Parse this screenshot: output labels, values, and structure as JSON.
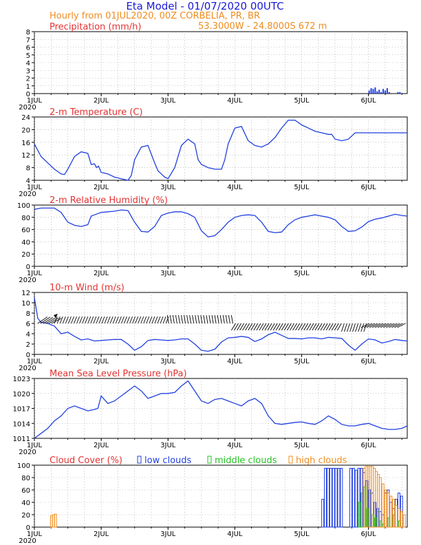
{
  "header": {
    "title": "Eta Model - 01/07/2020 00UTC",
    "line1": "Hourly from 01JUL2020, 00Z  CORBELIA, PR, BR",
    "line2": "53.3000W - 24.8000S    672  m"
  },
  "colors": {
    "title": "#1a1ad6",
    "subtitle": "#f08c1e",
    "panel_title": "#e43232",
    "series": "#1f3fe0",
    "low": "#1f3fe0",
    "middle": "#22c322",
    "high": "#f08c1e",
    "wind": "#000000"
  },
  "chart_data": [
    {
      "id": "precip",
      "type": "bar",
      "title": "Precipitation (mm/h)",
      "ylim": [
        0,
        8
      ],
      "yticks": [
        "0",
        "1",
        "2",
        "3",
        "4",
        "5",
        "6",
        "7",
        "8"
      ],
      "xlim": [
        0,
        5.58
      ],
      "xticks": [
        "1JUL",
        "2JUL",
        "3JUL",
        "4JUL",
        "5JUL",
        "6JUL"
      ],
      "xsub": "2020",
      "x": [
        5.0,
        5.03,
        5.06,
        5.09,
        5.12,
        5.15,
        5.18,
        5.21,
        5.24,
        5.27,
        5.3,
        5.43,
        5.46
      ],
      "values": [
        0.4,
        0.7,
        0.6,
        0.8,
        0.3,
        0.5,
        0.2,
        0.6,
        0.4,
        0.7,
        0.2,
        0.2,
        0.2
      ]
    },
    {
      "id": "temp",
      "type": "line",
      "title": "2-m Temperature (C)",
      "ylim": [
        4,
        24
      ],
      "yticks": [
        "4",
        "8",
        "12",
        "16",
        "20",
        "24"
      ],
      "xlim": [
        0,
        5.58
      ],
      "xticks": [
        "1JUL",
        "2JUL",
        "3JUL",
        "4JUL",
        "5JUL",
        "6JUL"
      ],
      "xsub": "2020",
      "x": [
        0,
        0.1,
        0.2,
        0.3,
        0.4,
        0.45,
        0.5,
        0.6,
        0.7,
        0.8,
        0.85,
        0.9,
        0.93,
        0.96,
        1.0,
        1.1,
        1.2,
        1.3,
        1.4,
        1.45,
        1.5,
        1.6,
        1.7,
        1.8,
        1.85,
        1.9,
        1.95,
        2.0,
        2.1,
        2.2,
        2.3,
        2.4,
        2.45,
        2.5,
        2.6,
        2.7,
        2.8,
        2.85,
        2.9,
        3.0,
        3.1,
        3.2,
        3.3,
        3.4,
        3.45,
        3.5,
        3.6,
        3.7,
        3.8,
        3.9,
        4.0,
        4.1,
        4.2,
        4.3,
        4.4,
        4.45,
        4.5,
        4.6,
        4.7,
        4.8,
        4.9,
        4.95,
        5.0,
        5.1,
        5.2,
        5.3,
        5.4,
        5.5,
        5.58
      ],
      "values": [
        15.5,
        11.5,
        9.5,
        7.5,
        6.0,
        5.8,
        7.5,
        11.5,
        13.0,
        12.5,
        9.0,
        9.2,
        8.0,
        8.5,
        6.5,
        6.0,
        5.0,
        4.5,
        4.0,
        5.5,
        10.5,
        14.5,
        15.0,
        9.5,
        7.0,
        6.0,
        5.0,
        4.5,
        8.0,
        15.0,
        17.0,
        15.5,
        10.5,
        9.0,
        8.0,
        7.5,
        7.5,
        10.5,
        15.5,
        20.5,
        21.0,
        16.5,
        15.0,
        14.5,
        15.0,
        15.5,
        17.5,
        20.5,
        23.0,
        23.0,
        21.5,
        20.5,
        19.5,
        19.0,
        18.5,
        18.5,
        17.0,
        16.5,
        17.0,
        19.0,
        19.0,
        19.0,
        19.0,
        19.0,
        19.0,
        19.0,
        19.0,
        19.0,
        19.0
      ]
    },
    {
      "id": "rh",
      "type": "line",
      "title": "2-m Relative Humidity (%)",
      "ylim": [
        0,
        100
      ],
      "yticks": [
        "0",
        "20",
        "40",
        "60",
        "80",
        "100"
      ],
      "xlim": [
        0,
        5.58
      ],
      "xticks": [
        "1JUL",
        "2JUL",
        "3JUL",
        "4JUL",
        "5JUL",
        "6JUL"
      ],
      "xsub": "2020",
      "x": [
        0,
        0.1,
        0.2,
        0.3,
        0.4,
        0.5,
        0.6,
        0.7,
        0.8,
        0.85,
        0.9,
        1.0,
        1.1,
        1.2,
        1.3,
        1.4,
        1.5,
        1.6,
        1.7,
        1.8,
        1.9,
        2.0,
        2.1,
        2.2,
        2.3,
        2.4,
        2.5,
        2.6,
        2.7,
        2.8,
        2.9,
        3.0,
        3.1,
        3.2,
        3.3,
        3.4,
        3.5,
        3.6,
        3.7,
        3.8,
        3.9,
        4.0,
        4.1,
        4.2,
        4.3,
        4.4,
        4.5,
        4.6,
        4.7,
        4.8,
        4.9,
        5.0,
        5.1,
        5.2,
        5.3,
        5.4,
        5.5,
        5.58
      ],
      "values": [
        93,
        95,
        95,
        95,
        88,
        72,
        67,
        65,
        68,
        82,
        84,
        88,
        89,
        90,
        92,
        91,
        72,
        57,
        56,
        65,
        83,
        87,
        89,
        89,
        86,
        80,
        58,
        48,
        50,
        60,
        72,
        80,
        83,
        84,
        83,
        72,
        57,
        55,
        56,
        68,
        76,
        80,
        82,
        84,
        82,
        80,
        76,
        65,
        57,
        58,
        64,
        73,
        77,
        79,
        82,
        85,
        83,
        82
      ]
    },
    {
      "id": "wind",
      "type": "line",
      "title": "10-m Wind (m/s)",
      "ylim": [
        0,
        12
      ],
      "yticks": [
        "0",
        "2",
        "4",
        "6",
        "8",
        "10",
        "12"
      ],
      "xlim": [
        0,
        5.58
      ],
      "xticks": [
        "1JUL",
        "2JUL",
        "3JUL",
        "4JUL",
        "5JUL",
        "6JUL"
      ],
      "xsub": "2020",
      "x": [
        0,
        0.05,
        0.1,
        0.2,
        0.3,
        0.4,
        0.5,
        0.6,
        0.7,
        0.8,
        0.9,
        1.0,
        1.1,
        1.2,
        1.3,
        1.4,
        1.5,
        1.6,
        1.7,
        1.8,
        1.9,
        2.0,
        2.1,
        2.2,
        2.3,
        2.4,
        2.5,
        2.6,
        2.7,
        2.8,
        2.9,
        3.0,
        3.1,
        3.2,
        3.3,
        3.4,
        3.5,
        3.6,
        3.7,
        3.8,
        3.9,
        4.0,
        4.1,
        4.2,
        4.3,
        4.4,
        4.5,
        4.6,
        4.7,
        4.8,
        4.9,
        5.0,
        5.1,
        5.2,
        5.3,
        5.4,
        5.5,
        5.58
      ],
      "values": [
        11,
        7,
        6.2,
        6.0,
        5.5,
        4.0,
        4.3,
        3.5,
        2.8,
        3.0,
        2.6,
        2.7,
        2.8,
        2.9,
        2.9,
        2.0,
        0.8,
        1.5,
        2.7,
        2.9,
        2.8,
        2.7,
        2.8,
        3.0,
        3.0,
        2.0,
        0.8,
        0.6,
        1.0,
        2.4,
        3.2,
        3.3,
        3.5,
        3.3,
        2.5,
        3.0,
        3.8,
        4.3,
        3.7,
        3.1,
        3.1,
        3.0,
        3.2,
        3.2,
        3.0,
        3.3,
        3.2,
        3.1,
        1.8,
        0.8,
        2.0,
        3.0,
        2.8,
        2.2,
        2.5,
        2.9,
        2.7,
        2.6
      ],
      "arrow_base": 6,
      "arrows_note": "wind direction barbs along baseline"
    },
    {
      "id": "mslp",
      "type": "line",
      "title": "Mean Sea Level Pressure (hPa)",
      "ylim": [
        1011,
        1023
      ],
      "yticks": [
        "1011",
        "1014",
        "1017",
        "1020",
        "1023"
      ],
      "xlim": [
        0,
        5.58
      ],
      "xticks": [
        "1JUL",
        "2JUL",
        "3JUL",
        "4JUL",
        "5JUL",
        "6JUL"
      ],
      "xsub": "2020",
      "x": [
        0,
        0.1,
        0.2,
        0.3,
        0.4,
        0.5,
        0.6,
        0.7,
        0.8,
        0.9,
        0.95,
        1.0,
        1.1,
        1.2,
        1.3,
        1.4,
        1.5,
        1.6,
        1.7,
        1.8,
        1.9,
        2.0,
        2.1,
        2.2,
        2.3,
        2.4,
        2.5,
        2.6,
        2.7,
        2.8,
        2.9,
        3.0,
        3.1,
        3.2,
        3.3,
        3.4,
        3.5,
        3.6,
        3.7,
        3.8,
        3.9,
        4.0,
        4.1,
        4.2,
        4.3,
        4.4,
        4.5,
        4.6,
        4.7,
        4.8,
        4.9,
        5.0,
        5.1,
        5.2,
        5.3,
        5.4,
        5.5,
        5.58
      ],
      "values": [
        1011,
        1012,
        1013,
        1014.5,
        1015.5,
        1017,
        1017.5,
        1017,
        1016.5,
        1016.8,
        1017,
        1019.5,
        1018,
        1018.5,
        1019.5,
        1020.5,
        1021.5,
        1020.5,
        1019,
        1019.5,
        1020,
        1020,
        1020.2,
        1021.5,
        1022.5,
        1020.5,
        1018.5,
        1018,
        1018.8,
        1019,
        1018.5,
        1018,
        1017.5,
        1018.5,
        1019,
        1018,
        1015.5,
        1014,
        1013.8,
        1014,
        1014.2,
        1014.3,
        1014,
        1013.8,
        1014.5,
        1015.5,
        1014.8,
        1013.8,
        1013.5,
        1013.5,
        1013.8,
        1014,
        1013.5,
        1013,
        1012.8,
        1012.8,
        1013,
        1013.5
      ]
    },
    {
      "id": "cloud",
      "type": "bar",
      "title": "Cloud Cover (%)",
      "legend": [
        "low clouds",
        "middle clouds",
        "high clouds"
      ],
      "ylim": [
        0,
        100
      ],
      "yticks": [
        "0",
        "20",
        "40",
        "60",
        "80",
        "100"
      ],
      "xlim": [
        0,
        5.58
      ],
      "xticks": [
        "1JUL",
        "2JUL",
        "3JUL",
        "4JUL",
        "5JUL",
        "6JUL"
      ],
      "xsub": "2020",
      "low": {
        "x": [
          4.3,
          4.34,
          4.38,
          4.42,
          4.46,
          4.5,
          4.54,
          4.58,
          4.72,
          4.76,
          4.8,
          4.84,
          4.88,
          4.92,
          4.96,
          5.0,
          5.04,
          5.08,
          5.12,
          5.16,
          5.2,
          5.24,
          5.28,
          5.32,
          5.36,
          5.4,
          5.44,
          5.48
        ],
        "values": [
          45,
          95,
          95,
          95,
          95,
          95,
          95,
          95,
          95,
          95,
          92,
          95,
          95,
          88,
          75,
          60,
          55,
          40,
          30,
          25,
          20,
          55,
          60,
          40,
          30,
          45,
          55,
          50
        ]
      },
      "middle": {
        "x": [
          4.84,
          4.88,
          4.92,
          4.96,
          5.0,
          5.04,
          5.08,
          5.12,
          5.16,
          5.2,
          5.28,
          5.36,
          5.44
        ],
        "values": [
          40,
          55,
          65,
          30,
          55,
          20,
          15,
          25,
          10,
          5,
          15,
          20,
          10
        ]
      },
      "high": {
        "x": [
          0.22,
          0.25,
          0.28,
          4.9,
          4.93,
          4.96,
          4.99,
          5.02,
          5.05,
          5.08,
          5.11,
          5.14,
          5.18,
          5.22,
          5.26,
          5.3,
          5.34,
          5.38,
          5.42,
          5.46,
          5.5
        ],
        "values": [
          18,
          20,
          21,
          95,
          98,
          98,
          98,
          98,
          95,
          90,
          85,
          80,
          70,
          60,
          55,
          50,
          45,
          35,
          30,
          25,
          20
        ]
      }
    }
  ]
}
